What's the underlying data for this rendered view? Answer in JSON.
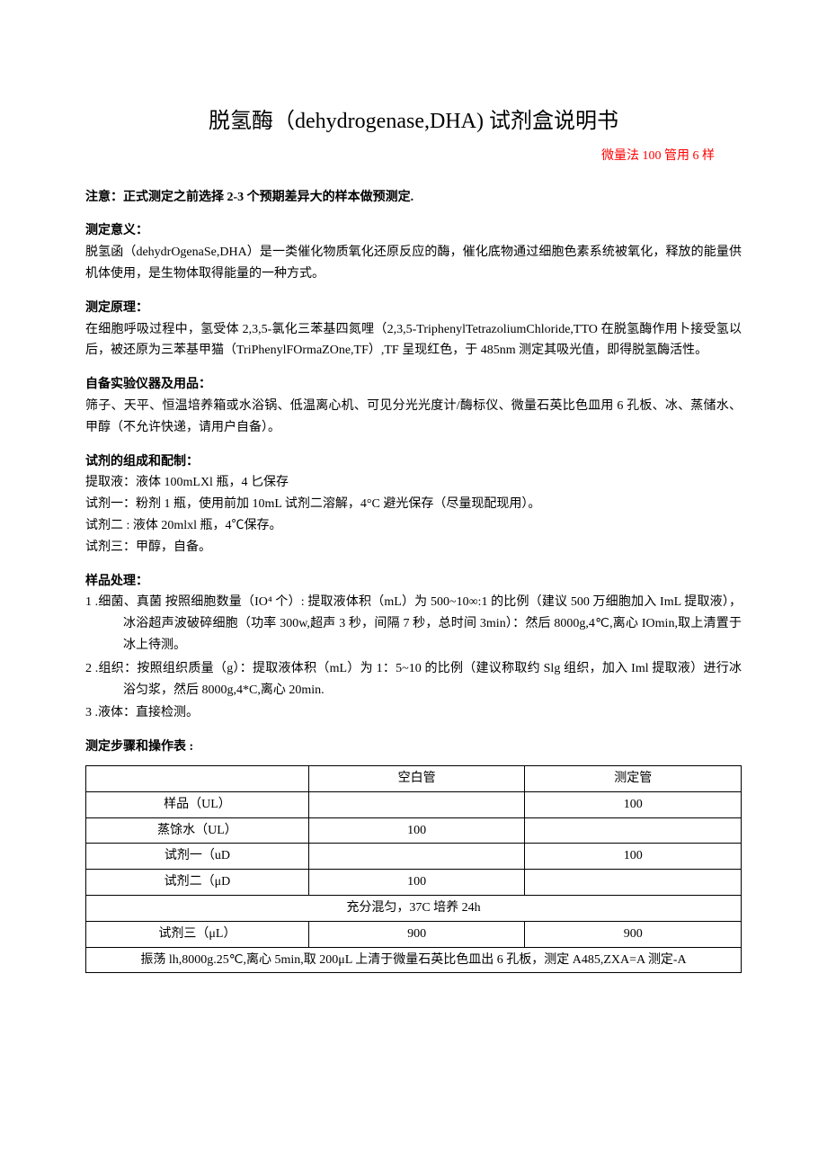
{
  "title": "脱氢酶（dehydrogenase,DHA) 试剂盒说明书",
  "subtitle": "微量法 100 管用 6 样",
  "notice_head": "注意：正式测定之前选择 2-3 个预期差异大的样本做预测定.",
  "meaning": {
    "head": "测定意义：",
    "body": "脱氢函（dehydrOgenaSe,DHA）是一类催化物质氧化还原反应的酶，催化底物通过细胞色素系统被氧化，释放的能量供机体使用，是生物体取得能量的一种方式。"
  },
  "principle": {
    "head": "测定原理：",
    "body": "在细胞呼吸过程中，氢受体 2,3,5-氯化三苯基四氮哩（2,3,5-TriphenylTetrazoliumChloride,TTO 在脱氢酶作用卜接受氢以后，被还原为三苯基甲猫（TriPhenylFOrmaZOne,TF）,TF 呈现红色，于 485nm 测定其吸光值，即得脱氢酶活性。"
  },
  "materials": {
    "head": "自备实验仪器及用品：",
    "body": "筛子、天平、恒温培养箱或水浴锅、低温离心机、可见分光光度计/酶标仪、微量石英比色皿用 6 孔板、冰、蒸储水、甲醇（不允许快递，请用户自备）。"
  },
  "reagents": {
    "head": "试剂的组成和配制：",
    "l1": "提取液：液体 100mLXl 瓶，4 匕保存",
    "l2": "试剂一：粉剂 1 瓶，使用前加 10mL 试剂二溶解，4°C 避光保存（尽量现配现用）。",
    "l3": "试剂二 : 液体 20mlxl 瓶，4℃保存。",
    "l4": "试剂三：甲醇，自备。"
  },
  "sample": {
    "head": "样品处理：",
    "s1": "1   .细菌、真菌 按照细胞数量（IO⁴ 个）: 提取液体积（mL）为 500~10∞:1 的比例（建议 500 万细胞加入 ImL 提取液），冰浴超声波破碎细胞（功率 300w,超声 3 秒，间隔 7 秒，总时间 3min）：然后 8000g,4℃,离心 IOmin,取上清置于冰上待测。",
    "s2": "2   .组织：按照组织质量（g）：提取液体积（mL）为 1：5~10 的比例（建议称取约 Slg 组织，加入 Iml 提取液）进行冰浴匀浆，然后 8000g,4*C,离心 20min.",
    "s3": "3   .液体：直接检测。"
  },
  "protocol": {
    "head": "测定步骤和操作表 :",
    "cols": [
      "",
      "空白管",
      "测定管"
    ],
    "rows": [
      {
        "label": "样品（UL）",
        "blank": "",
        "test": "100"
      },
      {
        "label": "蒸馀水（UL）",
        "blank": "100",
        "test": ""
      },
      {
        "label": "试剂一（uD",
        "blank": "",
        "test": "100"
      },
      {
        "label": "试剂二（μD",
        "blank": "100",
        "test": ""
      }
    ],
    "mix": "充分混匀，37C 培养 24h",
    "reagent3": {
      "label": "试剂三（μL）",
      "blank": "900",
      "test": "900"
    },
    "final": "振荡 lh,8000g.25℃,离心 5min,取 200μL 上清于微量石英比色皿出 6 孔板，测定 A485,ZXA=A 测定-A"
  }
}
